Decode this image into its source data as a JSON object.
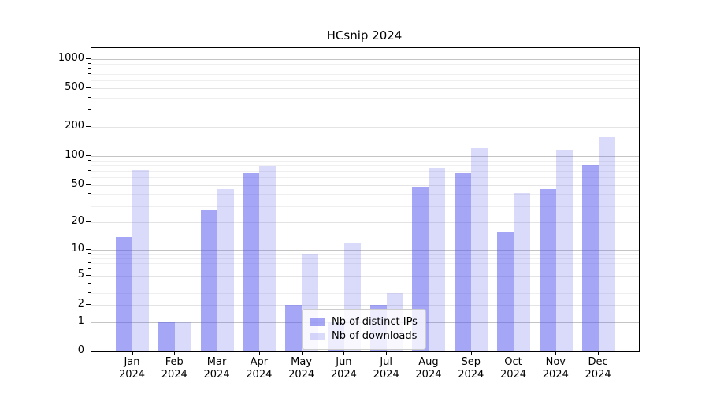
{
  "figure": {
    "title": "HCsnip 2024"
  },
  "chart_data": {
    "type": "bar",
    "title": "HCsnip 2024",
    "categories": [
      "Jan",
      "Feb",
      "Mar",
      "Apr",
      "May",
      "Jun",
      "Jul",
      "Aug",
      "Sep",
      "Oct",
      "Nov",
      "Dec"
    ],
    "category_sublabel": "2024",
    "series": [
      {
        "name": "Nb of distinct IPs",
        "color": "#5555ee",
        "alpha": 0.52,
        "values": [
          14,
          1,
          27,
          66,
          2,
          1,
          2,
          48,
          68,
          16,
          45,
          81
        ]
      },
      {
        "name": "Nb of downloads",
        "color": "#5555ee",
        "alpha": 0.22,
        "values": [
          72,
          1,
          45,
          78,
          9,
          12,
          3,
          75,
          120,
          41,
          117,
          156
        ]
      }
    ],
    "yscale": "log1p",
    "ylim": [
      0,
      1300
    ],
    "y_labeled_ticks": [
      0,
      1,
      2,
      5,
      10,
      20,
      50,
      100,
      200,
      500,
      1000
    ],
    "y_major_gridlines": [
      1,
      10,
      100,
      1000
    ],
    "y_minor_gridlines": [
      3,
      4,
      6,
      7,
      8,
      9,
      30,
      40,
      60,
      70,
      80,
      90,
      300,
      400,
      600,
      700,
      800,
      900
    ],
    "grid": true,
    "legend_position": "lower center",
    "colors": {
      "bar_base": "#5555ee",
      "major_grid": "#c4c4c4",
      "minor_grid": "#efefef",
      "axis": "#000000",
      "background": "#ffffff"
    }
  }
}
